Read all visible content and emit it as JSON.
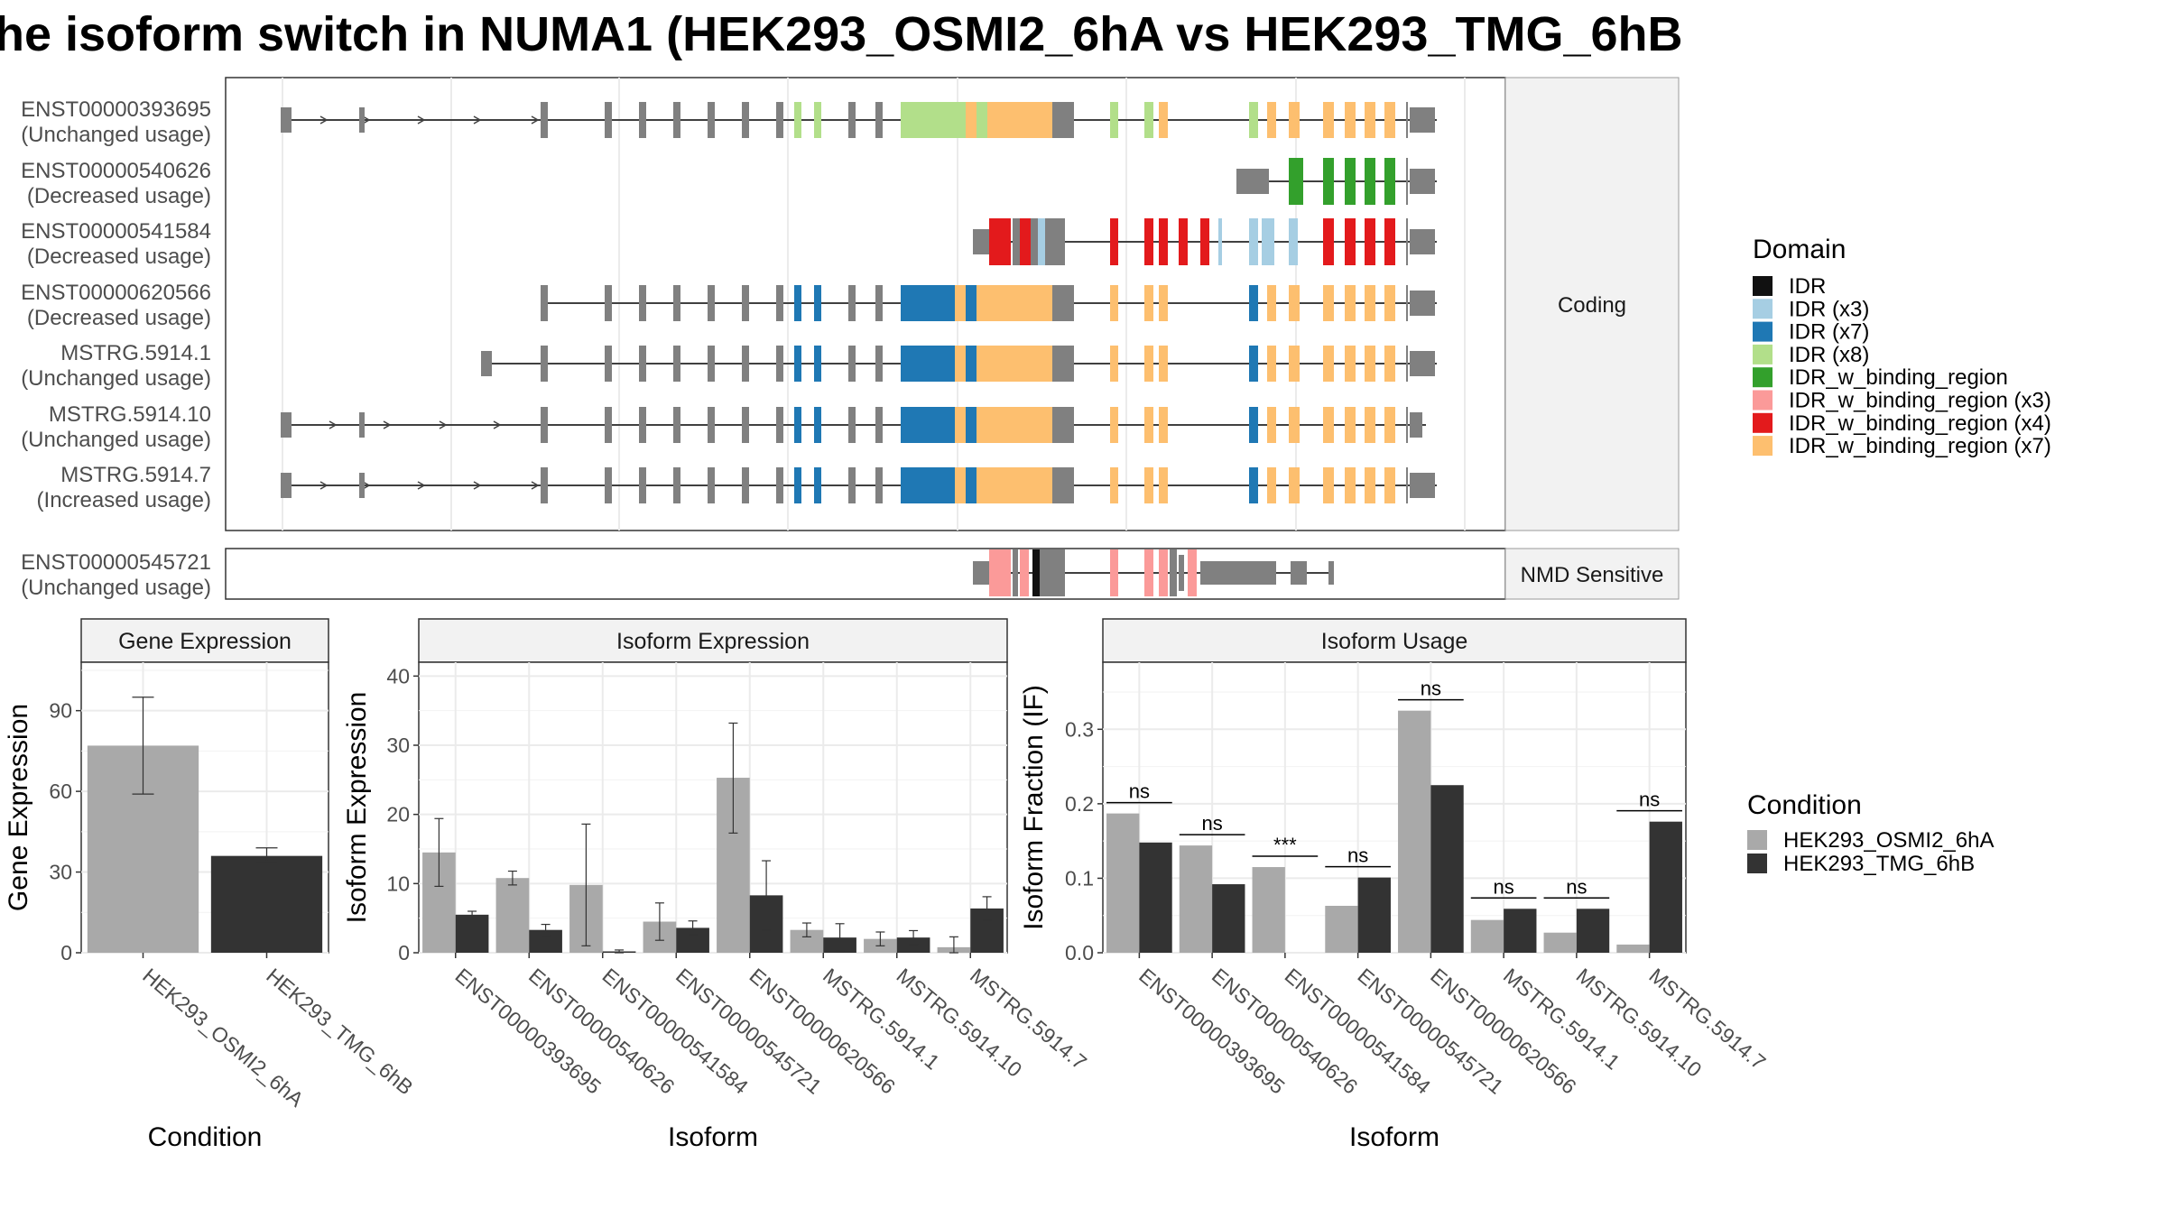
{
  "title": "he isoform switch in NUMA1 (HEK293_OSMI2_6hA vs HEK293_TMG_6hB",
  "structure": {
    "coding_strip_label": "Coding",
    "nmd_strip_label": "NMD Sensitive",
    "transcripts_coding": [
      {
        "id": "ENST00000393695",
        "usage": "(Unchanged usage)"
      },
      {
        "id": "ENST00000540626",
        "usage": "(Decreased usage)"
      },
      {
        "id": "ENST00000541584",
        "usage": "(Decreased usage)"
      },
      {
        "id": "ENST00000620566",
        "usage": "(Decreased usage)"
      },
      {
        "id": "MSTRG.5914.1",
        "usage": "(Unchanged usage)"
      },
      {
        "id": "MSTRG.5914.10",
        "usage": "(Unchanged usage)"
      },
      {
        "id": "MSTRG.5914.7",
        "usage": "(Increased usage)"
      }
    ],
    "transcripts_nmd": [
      {
        "id": "ENST00000545721",
        "usage": "(Unchanged usage)"
      }
    ]
  },
  "domain_legend": {
    "title": "Domain",
    "items": [
      {
        "label": "IDR",
        "color": "#111111"
      },
      {
        "label": "IDR (x3)",
        "color": "#a6cee3"
      },
      {
        "label": "IDR (x7)",
        "color": "#1f78b4"
      },
      {
        "label": "IDR (x8)",
        "color": "#b2df8a"
      },
      {
        "label": "IDR_w_binding_region",
        "color": "#33a02c"
      },
      {
        "label": "IDR_w_binding_region (x3)",
        "color": "#fb9a99"
      },
      {
        "label": "IDR_w_binding_region (x4)",
        "color": "#e31a1c"
      },
      {
        "label": "IDR_w_binding_region (x7)",
        "color": "#fdbf6f"
      }
    ]
  },
  "condition_legend": {
    "title": "Condition",
    "items": [
      {
        "label": "HEK293_OSMI2_6hA",
        "color": "#a9a9a9"
      },
      {
        "label": "HEK293_TMG_6hB",
        "color": "#333333"
      }
    ]
  },
  "chart_data": [
    {
      "type": "bar",
      "title": "Gene Expression",
      "xlabel": "Condition",
      "ylabel": "Gene Expression",
      "categories": [
        "HEK293_OSMI2_6hA",
        "HEK293_TMG_6hB"
      ],
      "values": [
        77,
        36
      ],
      "err_low": [
        59,
        34
      ],
      "err_high": [
        95,
        39
      ],
      "ylim": [
        0,
        108
      ],
      "yticks": [
        0,
        30,
        60,
        90
      ]
    },
    {
      "type": "bar",
      "title": "Isoform Expression",
      "xlabel": "Isoform",
      "ylabel": "Isoform Expression",
      "categories": [
        "ENST00000393695",
        "ENST00000540626",
        "ENST00000541584",
        "ENST00000545721",
        "ENST00000620566",
        "MSTRG.5914.1",
        "MSTRG.5914.10",
        "MSTRG.5914.7"
      ],
      "series": [
        {
          "name": "HEK293_OSMI2_6hA",
          "values": [
            14.5,
            10.8,
            9.8,
            4.5,
            25.3,
            3.3,
            2.0,
            0.8
          ],
          "err_low": [
            9.6,
            9.8,
            1.0,
            1.8,
            17.3,
            2.3,
            1.0,
            0.0
          ],
          "err_high": [
            19.4,
            11.8,
            18.6,
            7.2,
            33.2,
            4.3,
            3.0,
            2.3
          ]
        },
        {
          "name": "HEK293_TMG_6hB",
          "values": [
            5.5,
            3.3,
            0.2,
            3.6,
            8.3,
            2.2,
            2.2,
            6.4
          ],
          "err_low": [
            5.0,
            2.5,
            0.0,
            2.6,
            3.3,
            0.2,
            1.2,
            4.7
          ],
          "err_high": [
            6.0,
            4.1,
            0.4,
            4.6,
            13.3,
            4.2,
            3.2,
            8.1
          ]
        }
      ],
      "ylim": [
        0,
        42
      ],
      "yticks": [
        0,
        10,
        20,
        30,
        40
      ]
    },
    {
      "type": "bar",
      "title": "Isoform Usage",
      "xlabel": "Isoform",
      "ylabel": "Isoform Fraction (IF)",
      "categories": [
        "ENST00000393695",
        "ENST00000540626",
        "ENST00000541584",
        "ENST00000545721",
        "ENST00000620566",
        "MSTRG.5914.1",
        "MSTRG.5914.10",
        "MSTRG.5914.7"
      ],
      "series": [
        {
          "name": "HEK293_OSMI2_6hA",
          "values": [
            0.187,
            0.144,
            0.115,
            0.063,
            0.325,
            0.044,
            0.027,
            0.011
          ]
        },
        {
          "name": "HEK293_TMG_6hB",
          "values": [
            0.148,
            0.092,
            0.0,
            0.101,
            0.225,
            0.059,
            0.059,
            0.176
          ]
        }
      ],
      "significance": [
        "ns",
        "ns",
        "***",
        "ns",
        "ns",
        "ns",
        "ns",
        "ns"
      ],
      "ylim": [
        0,
        0.39
      ],
      "yticks": [
        0.0,
        0.1,
        0.2,
        0.3
      ]
    }
  ]
}
